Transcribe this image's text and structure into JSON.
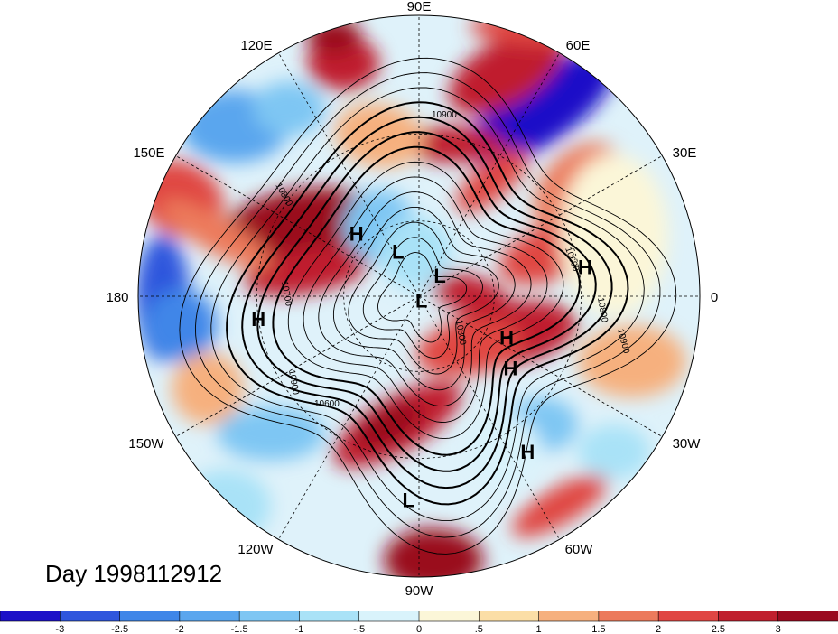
{
  "title": "Day 1998112912",
  "map": {
    "projection": "polar-stereographic-north",
    "longitude_labels": [
      "90E",
      "60E",
      "30E",
      "0",
      "30W",
      "60W",
      "90W",
      "120W",
      "150W",
      "180",
      "150E",
      "120E"
    ],
    "contour_labels": [
      "10900",
      "10800",
      "10600",
      "10900",
      "10800",
      "10700",
      "10600",
      "10800",
      "10900"
    ],
    "pressure_centers": [
      {
        "type": "H",
        "lon": 135,
        "lat": 55
      },
      {
        "type": "L",
        "lon": 115,
        "lat": 70
      },
      {
        "type": "H",
        "lon": 10,
        "lat": 28
      },
      {
        "type": "L",
        "lon": 45,
        "lat": 78
      },
      {
        "type": "L",
        "lon": -60,
        "lat": 88
      },
      {
        "type": "H",
        "lon": -25,
        "lat": 52
      },
      {
        "type": "H",
        "lon": -38,
        "lat": 45
      },
      {
        "type": "H",
        "lon": -172,
        "lat": 30
      },
      {
        "type": "H",
        "lon": -55,
        "lat": 22
      },
      {
        "type": "L",
        "lon": -93,
        "lat": 18
      }
    ]
  },
  "colorbar": {
    "tick_labels": [
      "-3",
      "-2.5",
      "-2",
      "-1.5",
      "-1",
      "-.5",
      "0",
      ".5",
      "1",
      "1.5",
      "2",
      "2.5",
      "3"
    ],
    "colors": [
      "#1c11c8",
      "#2f56dd",
      "#3f86e8",
      "#5aa6ee",
      "#7ec6f3",
      "#a9e2f7",
      "#d9f3fb",
      "#fbf6d8",
      "#fbdea6",
      "#f6b07e",
      "#ec7a5c",
      "#e04643",
      "#c01f2e",
      "#9a0a1f"
    ]
  }
}
